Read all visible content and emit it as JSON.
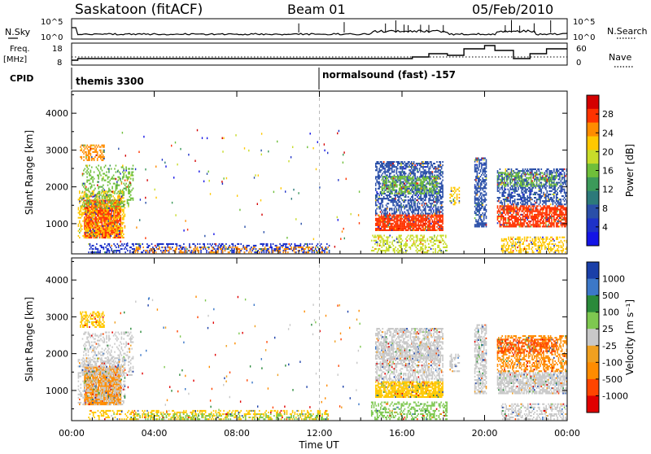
{
  "header": {
    "station": "Saskatoon (fitACF)",
    "beam": "Beam 01",
    "date": "05/Feb/2010"
  },
  "top_panels": {
    "nsky_label": "N.Sky",
    "nsearch_label": "N.Search",
    "count_ticks": [
      "10^5",
      "10^0"
    ],
    "freq_label_line1": "Freq.",
    "freq_label_line2": "[MHz]",
    "freq_ticks": [
      18,
      8
    ],
    "nave_label": "Nave",
    "nave_ticks": [
      60,
      0
    ],
    "cpid_label": "CPID",
    "cpid_segments": [
      {
        "name": "themis 3300",
        "start_hour": 0,
        "end_hour": 12
      },
      {
        "name": "normalsound (fast) -157",
        "start_hour": 12,
        "end_hour": 24
      }
    ]
  },
  "chart_data": [
    {
      "type": "heatmap",
      "panel": "power",
      "xlabel": "Time UT",
      "ylabel": "Slant Range [km]",
      "x_ticks": [
        "00:00",
        "04:00",
        "08:00",
        "12:00",
        "16:00",
        "20:00",
        "00:00"
      ],
      "xlim_hours": [
        0,
        24
      ],
      "y_ticks": [
        1000,
        2000,
        3000,
        4000
      ],
      "ylim_km": [
        180,
        4600
      ],
      "colorbar": {
        "label": "Power [dB]",
        "ticks": [
          28,
          24,
          20,
          16,
          12,
          8,
          4
        ],
        "colors": [
          "#d40000",
          "#ff3300",
          "#ff8c00",
          "#ffc800",
          "#c8dc2a",
          "#6fbf3a",
          "#3c9a5a",
          "#2d7a7a",
          "#2a4fa8",
          "#1e32c8",
          "#1414e6"
        ],
        "range": [
          0,
          30
        ]
      }
    },
    {
      "type": "heatmap",
      "panel": "velocity",
      "xlabel": "Time UT",
      "ylabel": "Slant Range [km]",
      "x_ticks": [
        "00:00",
        "04:00",
        "08:00",
        "12:00",
        "16:00",
        "20:00",
        "00:00"
      ],
      "xlim_hours": [
        0,
        24
      ],
      "y_ticks": [
        1000,
        2000,
        3000,
        4000
      ],
      "ylim_km": [
        180,
        4600
      ],
      "colorbar": {
        "label": "Velocity [m s⁻¹]",
        "ticks": [
          1000,
          500,
          100,
          25,
          -25,
          -100,
          -500,
          -1000
        ],
        "colors": [
          "#1a3fa8",
          "#3c78c8",
          "#2a8a3a",
          "#7ec850",
          "#c8c8c8",
          "#f0a020",
          "#ff8c00",
          "#ff4500",
          "#e00000"
        ],
        "range": [
          -1000,
          1000
        ]
      }
    }
  ],
  "echo_regions": [
    {
      "t0": 0.6,
      "t1": 2.4,
      "r0": 600,
      "r1": 1650,
      "pcol": "#ff3300",
      "vcol": "#ff8c00",
      "density": 0.9
    },
    {
      "t0": 0.3,
      "t1": 2.6,
      "r0": 600,
      "r1": 1900,
      "pcol": "#ffc800",
      "vcol": "#c8c8c8",
      "density": 0.35
    },
    {
      "t0": 0.4,
      "t1": 1.6,
      "r0": 2700,
      "r1": 3150,
      "pcol": "#ff8c00",
      "vcol": "#ffc800",
      "density": 0.5
    },
    {
      "t0": 0.5,
      "t1": 3.0,
      "r0": 1400,
      "r1": 2600,
      "pcol": "#6fbf3a",
      "vcol": "#c8c8c8",
      "density": 0.3
    },
    {
      "t0": 0.8,
      "t1": 12.5,
      "r0": 200,
      "r1": 470,
      "pcol": "#1e32c8",
      "vcol": "#ffc800",
      "density": 0.35
    },
    {
      "t0": 3.0,
      "t1": 12.5,
      "r0": 200,
      "r1": 380,
      "pcol": "#ff8c00",
      "vcol": "#7ec850",
      "density": 0.25
    },
    {
      "t0": 14.7,
      "t1": 18.0,
      "r0": 800,
      "r1": 1250,
      "pcol": "#ff3300",
      "vcol": "#ffc800",
      "density": 0.85
    },
    {
      "t0": 14.7,
      "t1": 18.0,
      "r0": 1250,
      "r1": 2700,
      "pcol": "#2a4fa8",
      "vcol": "#c8c8c8",
      "density": 0.55
    },
    {
      "t0": 15.0,
      "t1": 17.8,
      "r0": 1800,
      "r1": 2300,
      "pcol": "#6fbf3a",
      "vcol": "#c8c8c8",
      "density": 0.45
    },
    {
      "t0": 14.5,
      "t1": 18.2,
      "r0": 200,
      "r1": 700,
      "pcol": "#c8dc2a",
      "vcol": "#7ec850",
      "density": 0.35
    },
    {
      "t0": 19.5,
      "t1": 20.1,
      "r0": 900,
      "r1": 2800,
      "pcol": "#2a4fa8",
      "vcol": "#c8c8c8",
      "density": 0.6
    },
    {
      "t0": 20.6,
      "t1": 24.0,
      "r0": 900,
      "r1": 1500,
      "pcol": "#ff3300",
      "vcol": "#c8c8c8",
      "density": 0.75
    },
    {
      "t0": 20.6,
      "t1": 24.0,
      "r0": 1500,
      "r1": 2500,
      "pcol": "#2a4fa8",
      "vcol": "#ff8c00",
      "density": 0.5
    },
    {
      "t0": 20.6,
      "t1": 23.5,
      "r0": 2000,
      "r1": 2400,
      "pcol": "#6fbf3a",
      "vcol": "#ff4500",
      "density": 0.4
    },
    {
      "t0": 20.8,
      "t1": 24.0,
      "r0": 200,
      "r1": 650,
      "pcol": "#ffc800",
      "vcol": "#c8c8c8",
      "density": 0.45
    },
    {
      "t0": 18.3,
      "t1": 18.8,
      "r0": 1500,
      "r1": 2000,
      "pcol": "#ffc800",
      "vcol": "#c8c8c8",
      "density": 0.4
    }
  ]
}
